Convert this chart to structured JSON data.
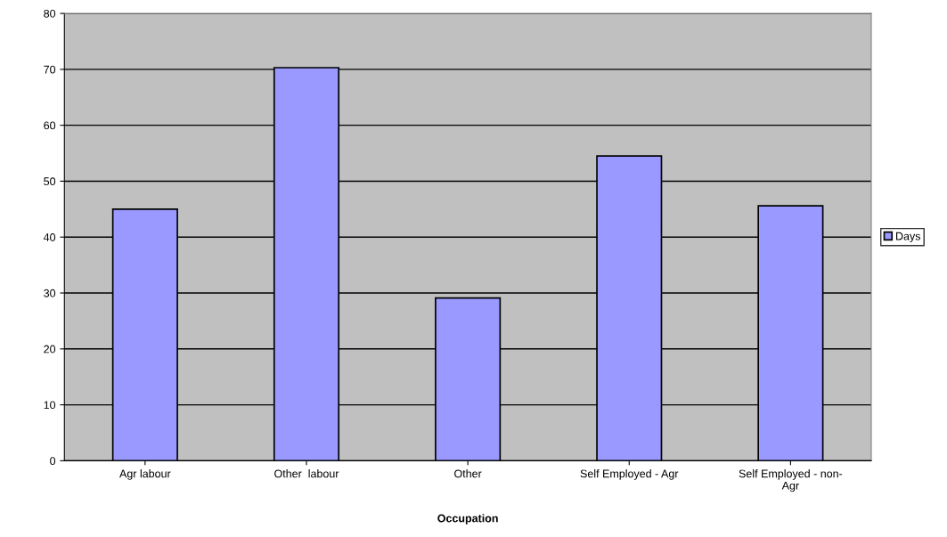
{
  "chart_data": {
    "type": "bar",
    "xlabel": "Occupation",
    "categories": [
      "Agr labour",
      "Other  labour",
      "Other",
      "Self Employed - Agr",
      "Self Employed - non-\nAgr"
    ],
    "series": [
      {
        "name": "Days",
        "color": "#9999ff",
        "values": [
          45.0,
          70.3,
          29.1,
          54.5,
          45.6
        ]
      }
    ],
    "ylim": [
      0,
      80
    ],
    "yticks": [
      0,
      10,
      20,
      30,
      40,
      50,
      60,
      70,
      80
    ],
    "grid": "y",
    "legend": "right"
  }
}
